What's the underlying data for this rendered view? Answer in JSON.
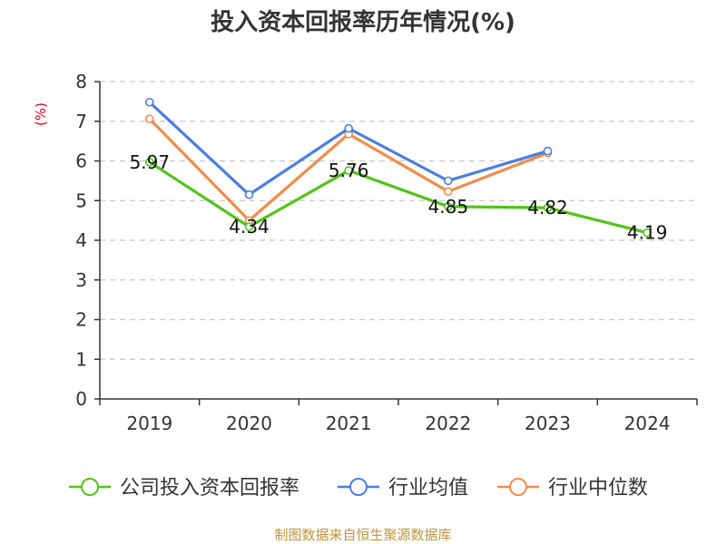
{
  "chart_data": {
    "type": "line",
    "title": "投入资本回报率历年情况(%)",
    "ylabel": "(%)",
    "xlabel": "",
    "categories": [
      "2019",
      "2020",
      "2021",
      "2022",
      "2023",
      "2024"
    ],
    "ylim": [
      0,
      8
    ],
    "yticks": [
      0,
      1,
      2,
      3,
      4,
      5,
      6,
      7,
      8
    ],
    "grid": true,
    "legend_position": "bottom",
    "series": [
      {
        "name": "公司投入资本回报率",
        "color": "#52c41a",
        "values": [
          5.97,
          4.34,
          5.76,
          4.85,
          4.82,
          4.19
        ],
        "labels": [
          "5.97",
          "4.34",
          "5.76",
          "4.85",
          "4.82",
          "4.19"
        ]
      },
      {
        "name": "行业均值",
        "color": "#4a7fdf",
        "values": [
          7.48,
          5.15,
          6.82,
          5.5,
          6.25,
          null
        ]
      },
      {
        "name": "行业中位数",
        "color": "#f28c4a",
        "values": [
          7.06,
          4.5,
          6.68,
          5.23,
          6.2,
          null
        ]
      }
    ]
  },
  "source_text": "制图数据来自恒生聚源数据库"
}
